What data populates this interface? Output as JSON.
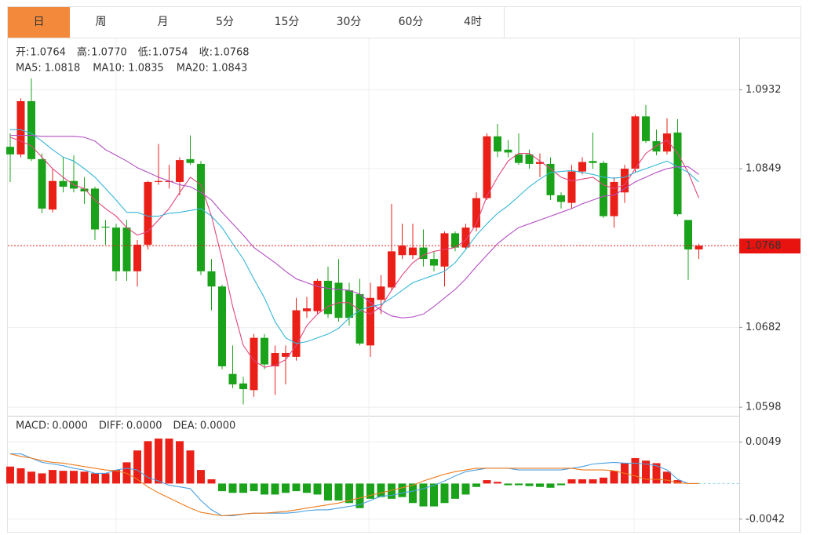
{
  "tabs": [
    "日",
    "周",
    "月",
    "5分",
    "15分",
    "30分",
    "60分",
    "4时"
  ],
  "active_tab": 0,
  "header": [
    {
      "label": "开:",
      "value": "1.0764"
    },
    {
      "label": "高:",
      "value": "1.0770"
    },
    {
      "label": "低:",
      "value": "1.0754"
    },
    {
      "label": "收:",
      "value": "1.0768"
    }
  ],
  "chart_data": [
    {
      "type": "candlestick",
      "up_color": "#ea1f17",
      "down_color": "#1aa31a",
      "grid": true,
      "ylim": [
        1.0589,
        1.0986
      ],
      "yticks": [
        1.0598,
        1.0682,
        1.0849,
        1.0932
      ],
      "open": [
        1.0872,
        1.0864,
        1.092,
        1.0859,
        1.0806,
        1.0836,
        1.0836,
        1.0828,
        1.0828,
        1.0788,
        1.0787,
        1.0787,
        1.0741,
        1.0769,
        1.0835,
        1.0835,
        1.0835,
        1.0859,
        1.0854,
        1.0741,
        1.0725,
        1.0633,
        1.0623,
        1.0616,
        1.0671,
        1.0641,
        1.0651,
        1.0651,
        1.0699,
        1.0699,
        1.0731,
        1.0729,
        1.0721,
        1.0717,
        1.0663,
        1.0711,
        1.0724,
        1.0758,
        1.0758,
        1.0766,
        1.0754,
        1.0746,
        1.0781,
        1.0766,
        1.0787,
        1.0818,
        1.0883,
        1.0869,
        1.0864,
        1.0864,
        1.0854,
        1.0854,
        1.0821,
        1.0813,
        1.0846,
        1.0857,
        1.0855,
        1.0799,
        1.0824,
        1.0849,
        1.0904,
        1.0878,
        1.0867,
        1.0887,
        1.0795,
        1.0764
      ],
      "high": [
        1.0886,
        1.0923,
        1.0944,
        1.0865,
        1.0849,
        1.0861,
        1.0863,
        1.084,
        1.083,
        1.0795,
        1.0791,
        1.0795,
        1.0774,
        1.0836,
        1.0875,
        1.0853,
        1.0861,
        1.0884,
        1.0857,
        1.0754,
        1.0727,
        1.0663,
        1.063,
        1.0675,
        1.0675,
        1.0663,
        1.0663,
        1.0713,
        1.0714,
        1.0733,
        1.0746,
        1.0754,
        1.0729,
        1.0733,
        1.0729,
        1.0737,
        1.0812,
        1.0791,
        1.0791,
        1.0785,
        1.0762,
        1.0783,
        1.0783,
        1.0791,
        1.0824,
        1.0886,
        1.0896,
        1.0879,
        1.0886,
        1.0869,
        1.0865,
        1.0861,
        1.0824,
        1.0853,
        1.0861,
        1.0887,
        1.0857,
        1.084,
        1.0853,
        1.0906,
        1.0916,
        1.089,
        1.0902,
        1.0901,
        1.0795,
        1.077
      ],
      "low": [
        1.0835,
        1.0861,
        1.0857,
        1.0802,
        1.0803,
        1.0824,
        1.0824,
        1.0812,
        1.0774,
        1.0769,
        1.0731,
        1.0731,
        1.0725,
        1.0764,
        1.0832,
        1.0828,
        1.0821,
        1.0853,
        1.0737,
        1.07,
        1.0638,
        1.0618,
        1.0601,
        1.0609,
        1.0638,
        1.0611,
        1.0622,
        1.0647,
        1.0692,
        1.0696,
        1.0692,
        1.0688,
        1.0684,
        1.0663,
        1.0651,
        1.0696,
        1.0721,
        1.0754,
        1.0754,
        1.0746,
        1.0741,
        1.0725,
        1.0762,
        1.0764,
        1.0783,
        1.0816,
        1.0861,
        1.0861,
        1.0853,
        1.0849,
        1.084,
        1.0816,
        1.0807,
        1.0807,
        1.0843,
        1.0849,
        1.0797,
        1.0787,
        1.0813,
        1.0845,
        1.0876,
        1.0863,
        1.0864,
        1.0799,
        1.0732,
        1.0754
      ],
      "close": [
        1.0864,
        1.092,
        1.0859,
        1.0807,
        1.0836,
        1.083,
        1.0828,
        1.0825,
        1.0785,
        1.0787,
        1.0741,
        1.0741,
        1.0769,
        1.0835,
        1.0836,
        1.0836,
        1.0858,
        1.0855,
        1.0741,
        1.0725,
        1.0641,
        1.0622,
        1.0617,
        1.0671,
        1.0643,
        1.0655,
        1.0655,
        1.07,
        1.0702,
        1.0731,
        1.0696,
        1.0692,
        1.0692,
        1.0665,
        1.0713,
        1.0725,
        1.0762,
        1.0768,
        1.0766,
        1.0754,
        1.0747,
        1.0781,
        1.0766,
        1.0787,
        1.0818,
        1.0883,
        1.0867,
        1.0866,
        1.0855,
        1.0854,
        1.0856,
        1.0821,
        1.0814,
        1.0846,
        1.0856,
        1.0855,
        1.0799,
        1.0835,
        1.0849,
        1.0904,
        1.0878,
        1.0867,
        1.0886,
        1.0801,
        1.0764,
        1.0768
      ],
      "series": [
        {
          "name": "MA5:",
          "color": "#e0457f",
          "values": [
            1.0882,
            1.0878,
            1.0873,
            1.0861,
            1.0849,
            1.084,
            1.0832,
            1.0828,
            1.0816,
            1.0807,
            1.0799,
            1.0787,
            1.0779,
            1.0783,
            1.0795,
            1.0807,
            1.0824,
            1.084,
            1.0832,
            1.0799,
            1.0754,
            1.0704,
            1.0663,
            1.0647,
            1.064,
            1.0642,
            1.0648,
            1.0663,
            1.0684,
            1.0696,
            1.0704,
            1.0708,
            1.0708,
            1.07,
            1.0696,
            1.0704,
            1.0721,
            1.0737,
            1.075,
            1.0758,
            1.0762,
            1.0764,
            1.0766,
            1.0774,
            1.0791,
            1.082,
            1.084,
            1.0857,
            1.0865,
            1.0865,
            1.0857,
            1.0849,
            1.084,
            1.0836,
            1.0838,
            1.084,
            1.0832,
            1.0828,
            1.0832,
            1.0849,
            1.0865,
            1.0873,
            1.0879,
            1.0865,
            1.0845,
            1.0818
          ]
        },
        {
          "name": "MA10:",
          "color": "#35b6d6",
          "values": [
            1.089,
            1.089,
            1.0886,
            1.0878,
            1.0869,
            1.0861,
            1.0857,
            1.0849,
            1.084,
            1.0828,
            1.0816,
            1.0803,
            1.0803,
            1.0799,
            1.0799,
            1.0802,
            1.0803,
            1.0805,
            1.0807,
            1.0799,
            1.0787,
            1.077,
            1.0754,
            1.0733,
            1.0713,
            1.0688,
            1.0671,
            1.0665,
            1.0667,
            1.0671,
            1.0675,
            1.0681,
            1.0692,
            1.07,
            1.0704,
            1.0706,
            1.0713,
            1.0721,
            1.0729,
            1.0733,
            1.0737,
            1.0741,
            1.075,
            1.0764,
            1.0779,
            1.0791,
            1.0802,
            1.081,
            1.082,
            1.083,
            1.0838,
            1.0845,
            1.0846,
            1.0847,
            1.0845,
            1.0843,
            1.084,
            1.0839,
            1.084,
            1.0845,
            1.0849,
            1.0853,
            1.0857,
            1.0851,
            1.0845,
            1.0835
          ]
        },
        {
          "name": "MA20:",
          "color": "#b24fc2",
          "values": [
            1.0884,
            1.0884,
            1.0884,
            1.0883,
            1.0883,
            1.0883,
            1.0883,
            1.0882,
            1.0878,
            1.0869,
            1.0863,
            1.0857,
            1.085,
            1.0845,
            1.084,
            1.0836,
            1.0832,
            1.083,
            1.0824,
            1.0816,
            1.0803,
            1.0791,
            1.0779,
            1.0766,
            1.0758,
            1.075,
            1.0741,
            1.0733,
            1.0729,
            1.0725,
            1.0723,
            1.0722,
            1.0721,
            1.0717,
            1.0708,
            1.07,
            1.0694,
            1.0692,
            1.0693,
            1.0696,
            1.0704,
            1.0713,
            1.0722,
            1.0733,
            1.0746,
            1.0758,
            1.077,
            1.0779,
            1.0787,
            1.0791,
            1.0795,
            1.0799,
            1.0803,
            1.0807,
            1.0812,
            1.0816,
            1.082,
            1.0821,
            1.0828,
            1.0835,
            1.084,
            1.0845,
            1.0849,
            1.0851,
            1.0851,
            1.0843
          ]
        }
      ]
    },
    {
      "type": "macd",
      "grid": true,
      "ylim": [
        -0.0057,
        0.0079
      ],
      "yticks": [
        -0.0042,
        0.0049
      ],
      "bars": {
        "name": "MACD:",
        "legend_value": "0.0000",
        "color": "#e0452b",
        "up_color": "#ea1f17",
        "down_color": "#1aa31a",
        "values": [
          0.002,
          0.0018,
          0.0014,
          0.0012,
          0.0016,
          0.0015,
          0.0015,
          0.0014,
          0.0012,
          0.0012,
          0.0016,
          0.0025,
          0.0039,
          0.005,
          0.0053,
          0.0053,
          0.005,
          0.0039,
          0.0016,
          0.0005,
          -0.0009,
          -0.0011,
          -0.0011,
          -0.0009,
          -0.0013,
          -0.0013,
          -0.0011,
          -0.0009,
          -0.0011,
          -0.0013,
          -0.002,
          -0.002,
          -0.0023,
          -0.0029,
          -0.0018,
          -0.0016,
          -0.0018,
          -0.0016,
          -0.0023,
          -0.0027,
          -0.0027,
          -0.0023,
          -0.0018,
          -0.0013,
          -0.0004,
          0.0004,
          0.0002,
          -0.0002,
          -0.0002,
          -0.0003,
          -0.0004,
          -0.0005,
          -0.0002,
          0.0005,
          0.0005,
          0.0005,
          0.0007,
          0.0015,
          0.0024,
          0.003,
          0.0027,
          0.0024,
          0.0014,
          0.0004,
          0,
          0
        ]
      },
      "series": [
        {
          "name": "DIFF:",
          "legend_value": "0.0000",
          "color": "#4a9fe0",
          "values": [
            0.0035,
            0.0035,
            0.003,
            0.0025,
            0.0023,
            0.0021,
            0.0018,
            0.0016,
            0.0012,
            0.0012,
            0.0016,
            0.0018,
            0.0016,
            0.0007,
            0.0003,
            -0.0002,
            -0.0004,
            -0.0006,
            -0.002,
            -0.0031,
            -0.0038,
            -0.0038,
            -0.0036,
            -0.0035,
            -0.0035,
            -0.0035,
            -0.0035,
            -0.0034,
            -0.0032,
            -0.0031,
            -0.0031,
            -0.0029,
            -0.0027,
            -0.0025,
            -0.002,
            -0.0015,
            -0.0014,
            -0.0011,
            -0.0009,
            -0.0006,
            -0.0002,
            0.0003,
            0.0009,
            0.0014,
            0.0016,
            0.0018,
            0.0018,
            0.0018,
            0.0016,
            0.0016,
            0.0016,
            0.0016,
            0.0016,
            0.0018,
            0.002,
            0.0023,
            0.0024,
            0.0025,
            0.0024,
            0.0024,
            0.0023,
            0.0021,
            0.0016,
            0.0005,
            0,
            0
          ]
        },
        {
          "name": "DEA:",
          "legend_value": "0.0000",
          "color": "#ee7a1c",
          "values": [
            0.0035,
            0.0032,
            0.003,
            0.0027,
            0.0025,
            0.0024,
            0.0022,
            0.002,
            0.0018,
            0.0016,
            0.0015,
            0.0012,
            0.0005,
            -0.0004,
            -0.0011,
            -0.0017,
            -0.0023,
            -0.0029,
            -0.0034,
            -0.0036,
            -0.0038,
            -0.0037,
            -0.0036,
            -0.0035,
            -0.0035,
            -0.0034,
            -0.0033,
            -0.0031,
            -0.0029,
            -0.0027,
            -0.0025,
            -0.0023,
            -0.002,
            -0.0017,
            -0.0014,
            -0.0011,
            -0.0008,
            -0.0005,
            -0.0002,
            0.0003,
            0.0007,
            0.0011,
            0.0014,
            0.0016,
            0.0018,
            0.0018,
            0.0018,
            0.0018,
            0.0018,
            0.0018,
            0.0018,
            0.0018,
            0.0018,
            0.0018,
            0.0016,
            0.0016,
            0.0016,
            0.0015,
            0.0012,
            0.0009,
            0.0005,
            0.0005,
            0.0004,
            0.0001,
            0,
            0
          ]
        }
      ]
    }
  ]
}
